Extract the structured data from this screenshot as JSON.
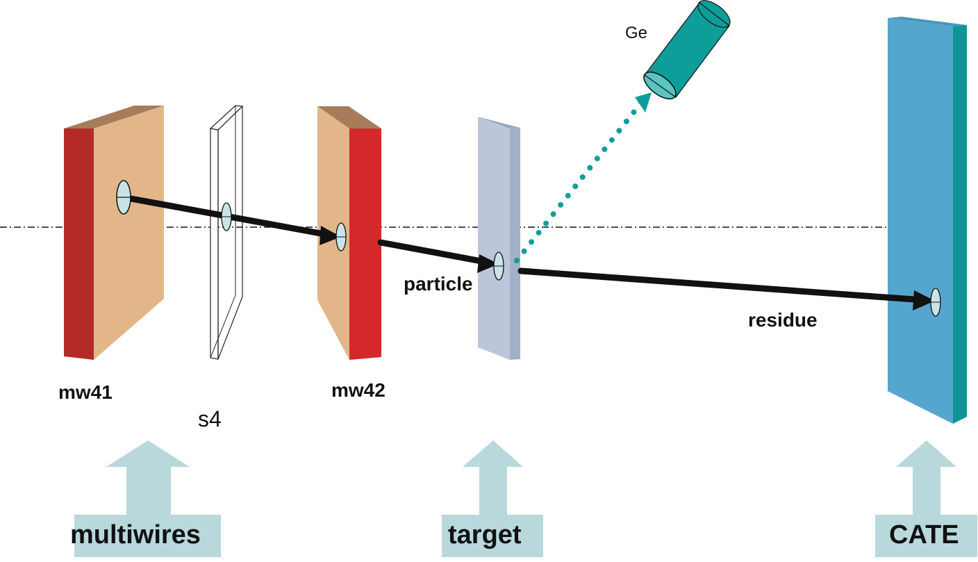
{
  "colors": {
    "mw_face": "#e2b688",
    "mw_top": "#a67c5a",
    "mw_side": "#b42a26",
    "mw42_side": "#d4292a",
    "target_face": "#bcc6da",
    "target_side": "#a4b0c8",
    "cate_face": "#55a6cf",
    "cate_side": "#0e9595",
    "ge_body": "#0e9e9a",
    "ge_cap": "#5cc4bf",
    "gamma": "#0e9e9a",
    "track": "#111111",
    "big_arrow": "#b8d8dc",
    "spot": "#c8e4e6"
  },
  "labels": {
    "ge": "Ge",
    "particle": "particle",
    "residue": "residue",
    "mw41": "mw41",
    "mw42": "mw42",
    "s4": "s4",
    "multiwires": "multiwires",
    "target": "target",
    "cate": "CATE"
  }
}
